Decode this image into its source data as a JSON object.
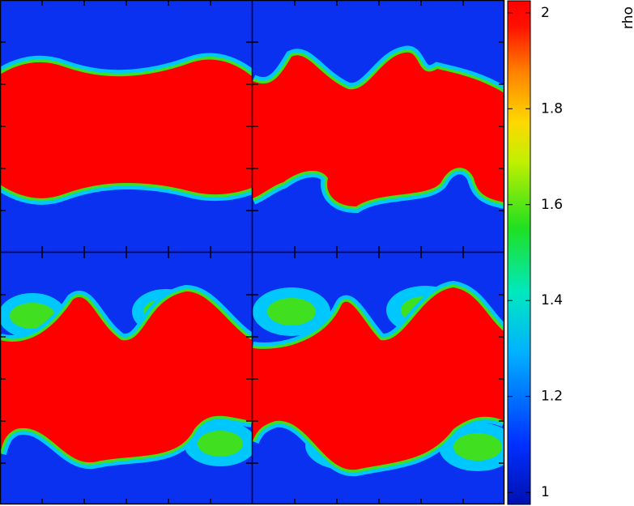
{
  "chart_data": {
    "type": "heatmap",
    "colorbar": {
      "label": "rho",
      "lim": [
        0.975,
        2.025
      ],
      "ticks": [
        1,
        1.2,
        1.4,
        1.6,
        1.8,
        2
      ]
    }
  }
}
